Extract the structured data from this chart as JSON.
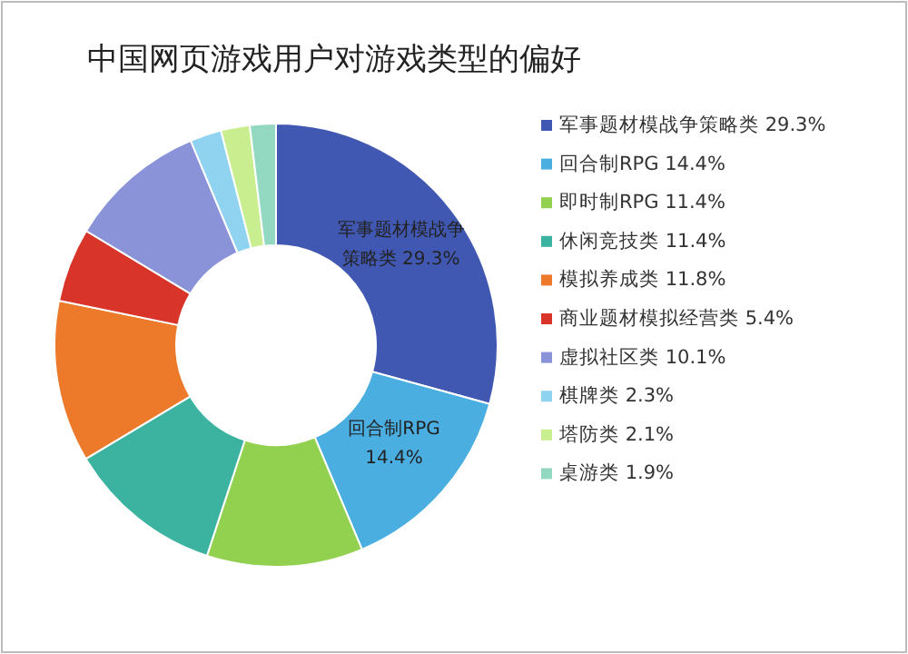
{
  "chart_data": {
    "type": "donut",
    "title": "中国网页游戏用户对游戏类型的偏好",
    "categories": [
      "军事题材模战争策略类",
      "回合制RPG",
      "即时制RPG",
      "休闲竞技类",
      "模拟养成类",
      "商业题材模拟经营类",
      "虚拟社区类",
      "棋牌类",
      "塔防类",
      "桌游类"
    ],
    "values": [
      29.3,
      14.4,
      11.4,
      11.4,
      11.8,
      5.4,
      10.1,
      2.3,
      2.1,
      1.9
    ],
    "value_labels": [
      "29.3%",
      "14.4%",
      "11.4%",
      "11.4%",
      "11.8%",
      "5.4%",
      "10.1%",
      "2.3%",
      "2.1%",
      "1.9%"
    ],
    "colors": [
      "#4158b2",
      "#4aaee0",
      "#92d050",
      "#3bb3a0",
      "#ec7a2a",
      "#d9342a",
      "#8a93d8",
      "#8fd3f0",
      "#c9ee8f",
      "#93d8c0"
    ],
    "annotations": [
      {
        "text": "军事题材模战争策略类  29.3%",
        "x": "军事题材模战争策略类"
      },
      {
        "text": "回合制RPG 14.4%",
        "x": "回合制RPG"
      }
    ],
    "legend": "right"
  }
}
